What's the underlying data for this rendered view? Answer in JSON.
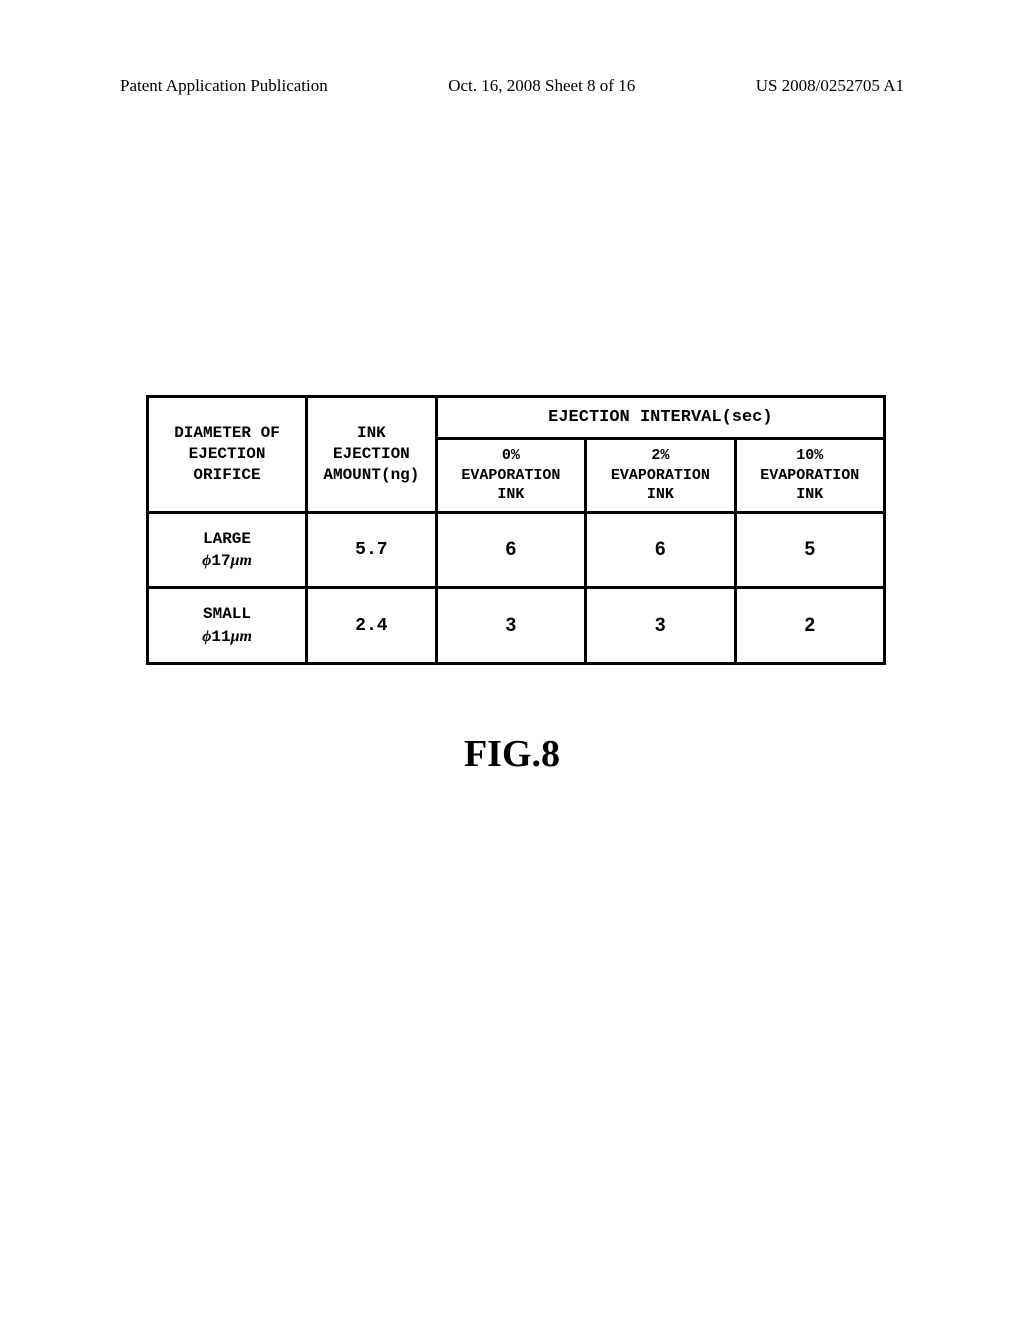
{
  "header": {
    "left": "Patent Application Publication",
    "center": "Oct. 16, 2008  Sheet 8 of 16",
    "right": "US 2008/0252705 A1"
  },
  "table": {
    "col1_header_line1": "DIAMETER OF",
    "col1_header_line2": "EJECTION",
    "col1_header_line3": "ORIFICE",
    "col2_header_line1": "INK",
    "col2_header_line2": "EJECTION",
    "col2_header_line3": "AMOUNT(ng)",
    "interval_header": "EJECTION INTERVAL(sec)",
    "sub1_line1": "0%",
    "sub1_line2": "EVAPORATION",
    "sub1_line3": "INK",
    "sub2_line1": "2%",
    "sub2_line2": "EVAPORATION",
    "sub2_line3": "INK",
    "sub3_line1": "10%",
    "sub3_line2": "EVAPORATION",
    "sub3_line3": "INK",
    "row1_label": "LARGE",
    "row1_dim_prefix": "ϕ",
    "row1_dim_num": "17",
    "row1_dim_unit": "μm",
    "row1_amount": "5.7",
    "row1_v1": "6",
    "row1_v2": "6",
    "row1_v3": "5",
    "row2_label": "SMALL",
    "row2_dim_prefix": "ϕ",
    "row2_dim_num": "11",
    "row2_dim_unit": "μm",
    "row2_amount": "2.4",
    "row2_v1": "3",
    "row2_v2": "3",
    "row2_v3": "2"
  },
  "figure_label": "FIG.8",
  "colors": {
    "background": "#ffffff",
    "text": "#000000",
    "border": "#000000"
  }
}
